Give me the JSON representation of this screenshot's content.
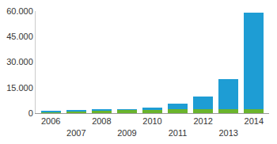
{
  "chart_data": {
    "type": "bar",
    "stacked": true,
    "categories": [
      "2006",
      "2007",
      "2008",
      "2009",
      "2010",
      "2011",
      "2012",
      "2013",
      "2014"
    ],
    "series": [
      {
        "color": "#6ab42d",
        "values": [
          700,
          1000,
          1500,
          1700,
          2000,
          2200,
          2300,
          2400,
          2500
        ]
      },
      {
        "color": "#1e9dd4",
        "values": [
          800,
          800,
          700,
          800,
          1300,
          3300,
          7700,
          17600,
          56500
        ]
      }
    ],
    "ylim": [
      0,
      60000
    ],
    "yticks": [
      0,
      {
        "value": 15000,
        "label": "15.000"
      },
      {
        "value": 30000,
        "label": "30.000"
      },
      {
        "value": 45000,
        "label": "45.000"
      },
      {
        "value": 60000,
        "label": "60.000"
      }
    ],
    "grid": false
  }
}
